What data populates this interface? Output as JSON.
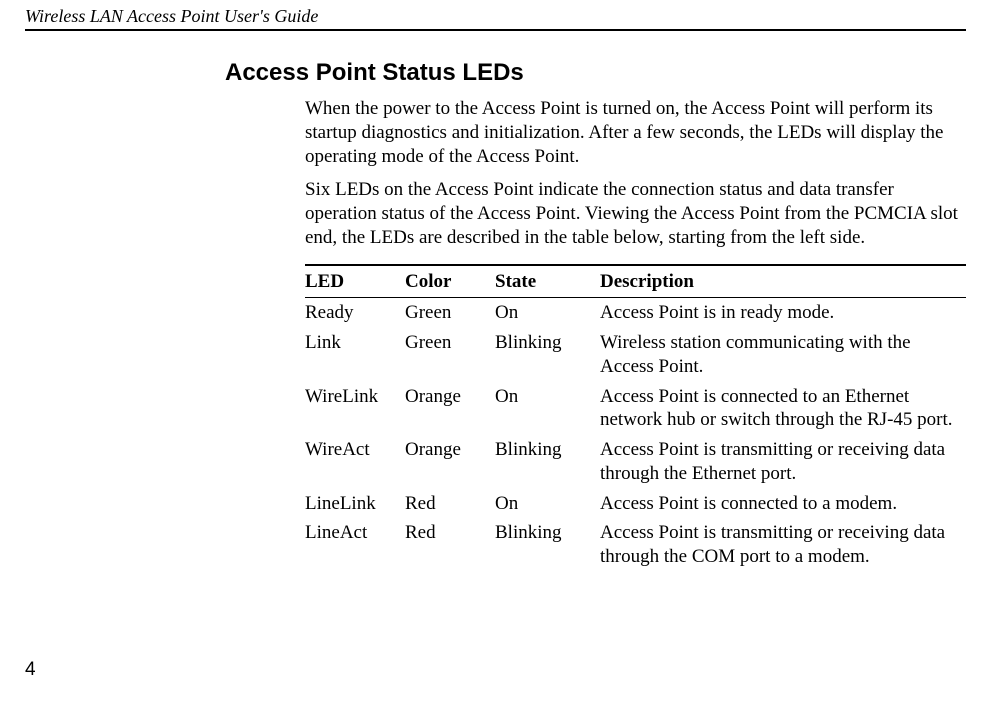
{
  "header": {
    "title": "Wireless LAN Access Point User's Guide"
  },
  "section": {
    "heading": "Access Point Status LEDs",
    "para1": "When the power to the Access Point is turned on, the Access Point will perform its startup diagnostics and initialization. After a few seconds, the LEDs will display the operating mode of the Access Point.",
    "para2": "Six LEDs on the Access Point indicate the connection status and data transfer operation status of the Access Point. Viewing the Access Point from the PCMCIA slot end, the LEDs are described in the table below, starting from the left side."
  },
  "table": {
    "headers": {
      "led": "LED",
      "color": "Color",
      "state": "State",
      "description": "Description"
    },
    "rows": [
      {
        "led": "Ready",
        "color": "Green",
        "state": "On",
        "description": "Access Point is in ready mode."
      },
      {
        "led": "Link",
        "color": "Green",
        "state": "Blinking",
        "description": "Wireless station communicating with the Access Point."
      },
      {
        "led": "WireLink",
        "color": "Orange",
        "state": "On",
        "description": "Access Point is connected to an Ethernet network hub or switch through the RJ-45 port."
      },
      {
        "led": "WireAct",
        "color": "Orange",
        "state": "Blinking",
        "description": "Access Point is transmitting or receiving data through the Ethernet port."
      },
      {
        "led": "LineLink",
        "color": "Red",
        "state": "On",
        "description": "Access Point is connected to a modem."
      },
      {
        "led": "LineAct",
        "color": "Red",
        "state": "Blinking",
        "description": "Access Point is transmitting or receiving data through the COM port to a modem."
      }
    ]
  },
  "footer": {
    "page_number": "4"
  }
}
